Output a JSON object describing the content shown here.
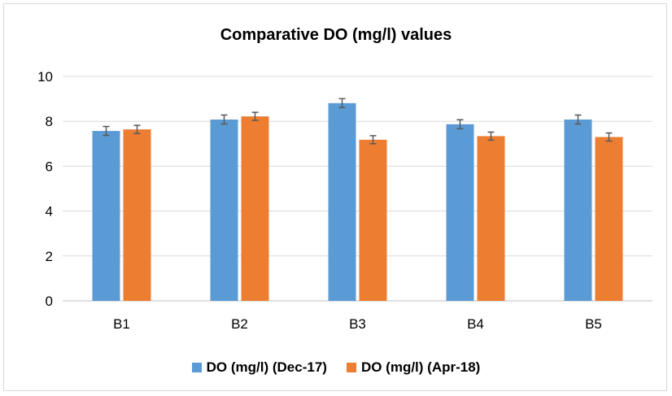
{
  "colors": {
    "dec": "#5b9bd5",
    "apr": "#ed7d31",
    "grid": "#d9d9d9",
    "axis": "#bfbfbf",
    "errorbar": "#595959"
  },
  "chart_data": {
    "type": "bar",
    "title": "Comparative DO (mg/l) values",
    "xlabel": "",
    "ylabel": "",
    "categories": [
      "B1",
      "B2",
      "B3",
      "B4",
      "B5"
    ],
    "ylim": [
      0,
      10
    ],
    "yticks": [
      "0",
      "2",
      "4",
      "6",
      "8",
      "10"
    ],
    "grid": true,
    "legend_position": "bottom",
    "error_bars": true,
    "series": [
      {
        "name": "DO (mg/l) (Dec-17)",
        "values": [
          7.57,
          8.08,
          8.81,
          7.87,
          8.08
        ],
        "errors": [
          0.2,
          0.2,
          0.2,
          0.2,
          0.2
        ]
      },
      {
        "name": "DO (mg/l) (Apr-18)",
        "values": [
          7.64,
          8.22,
          7.18,
          7.34,
          7.3
        ],
        "errors": [
          0.18,
          0.18,
          0.18,
          0.18,
          0.18
        ]
      }
    ]
  }
}
